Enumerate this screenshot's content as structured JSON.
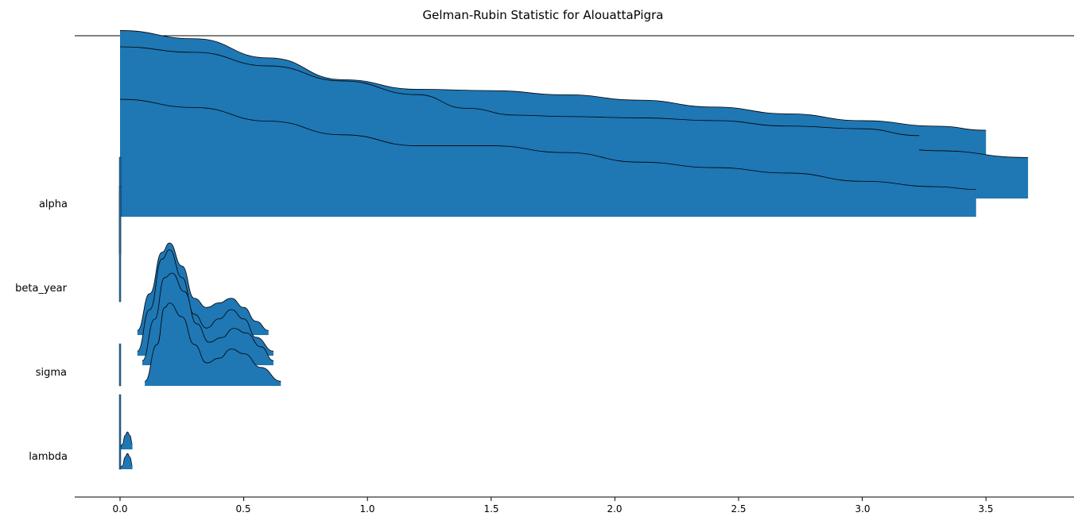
{
  "chart_data": {
    "type": "area",
    "title": "Gelman-Rubin Statistic for AlouattaPigra",
    "xlabel": "",
    "ylabel": "",
    "xlim": [
      -0.18,
      3.86
    ],
    "x_ticks": [
      "0.0",
      "0.5",
      "1.0",
      "1.5",
      "2.0",
      "2.5",
      "3.0",
      "3.5"
    ],
    "x_tick_values": [
      0.0,
      0.5,
      1.0,
      1.5,
      2.0,
      2.5,
      3.0,
      3.5
    ],
    "grid": false,
    "color": "#1f77b4",
    "parameters": [
      {
        "label": "alpha",
        "chains": [
          {
            "x": [
              0.0,
              0.3,
              0.6,
              0.9,
              1.2,
              1.5,
              1.8,
              2.1,
              2.4,
              2.7,
              3.0,
              3.3,
              3.5
            ],
            "density": [
              0.98,
              0.92,
              0.78,
              0.62,
              0.55,
              0.54,
              0.51,
              0.47,
              0.42,
              0.37,
              0.32,
              0.28,
              0.25
            ]
          },
          {
            "x": [
              0.0,
              0.3,
              0.6,
              0.9,
              1.2,
              1.5,
              1.8,
              2.1,
              2.4,
              2.7,
              3.0,
              3.3,
              3.67
            ],
            "density": [
              1.0,
              0.94,
              0.8,
              0.66,
              0.56,
              0.55,
              0.55,
              0.55,
              0.52,
              0.48,
              0.42,
              0.35,
              0.3
            ]
          },
          {
            "x": [
              0.0,
              0.3,
              0.6,
              0.9,
              1.2,
              1.4,
              1.6,
              1.8,
              2.1,
              2.4,
              2.7,
              3.0,
              3.23
            ],
            "density": [
              1.0,
              0.96,
              0.86,
              0.75,
              0.65,
              0.55,
              0.5,
              0.49,
              0.48,
              0.46,
              0.42,
              0.4,
              0.35
            ]
          },
          {
            "x": [
              0.0,
              0.3,
              0.6,
              0.9,
              1.2,
              1.5,
              1.8,
              2.1,
              2.4,
              2.7,
              3.0,
              3.3,
              3.46
            ],
            "density": [
              0.86,
              0.8,
              0.7,
              0.6,
              0.52,
              0.52,
              0.47,
              0.4,
              0.36,
              0.32,
              0.26,
              0.22,
              0.2
            ]
          }
        ]
      },
      {
        "label": "beta_year",
        "chains": [
          {
            "x": [
              0.07,
              0.12,
              0.17,
              0.2,
              0.25,
              0.3,
              0.35,
              0.4,
              0.45,
              0.5,
              0.55,
              0.6
            ],
            "density": [
              0.1,
              0.9,
              1.8,
              2.0,
              1.5,
              0.8,
              0.6,
              0.7,
              0.8,
              0.6,
              0.3,
              0.1
            ]
          },
          {
            "x": [
              0.07,
              0.12,
              0.17,
              0.2,
              0.25,
              0.3,
              0.35,
              0.4,
              0.45,
              0.5,
              0.55,
              0.62
            ],
            "density": [
              0.1,
              1.0,
              2.1,
              2.3,
              1.7,
              0.9,
              0.6,
              0.8,
              1.0,
              0.8,
              0.4,
              0.1
            ]
          }
        ]
      },
      {
        "label": "sigma",
        "chains": [
          {
            "x": [
              0.09,
              0.14,
              0.18,
              0.21,
              0.26,
              0.31,
              0.36,
              0.41,
              0.46,
              0.51,
              0.57,
              0.62
            ],
            "density": [
              0.1,
              1.0,
              1.9,
              2.0,
              1.6,
              0.9,
              0.5,
              0.6,
              0.8,
              0.7,
              0.4,
              0.1
            ]
          },
          {
            "x": [
              0.1,
              0.15,
              0.18,
              0.2,
              0.25,
              0.3,
              0.35,
              0.4,
              0.45,
              0.5,
              0.57,
              0.65
            ],
            "density": [
              0.1,
              0.9,
              1.7,
              1.8,
              1.5,
              0.9,
              0.5,
              0.6,
              0.8,
              0.7,
              0.4,
              0.1
            ]
          }
        ]
      },
      {
        "label": "lambda",
        "chains": [
          {
            "x": [
              0.0,
              0.01,
              0.02,
              0.03,
              0.04,
              0.05
            ],
            "density": [
              0.1,
              0.3,
              0.8,
              1.0,
              0.8,
              0.3
            ]
          },
          {
            "x": [
              0.0,
              0.01,
              0.02,
              0.03,
              0.04,
              0.05
            ],
            "density": [
              0.1,
              0.2,
              0.7,
              0.9,
              0.7,
              0.2
            ]
          }
        ]
      }
    ]
  }
}
